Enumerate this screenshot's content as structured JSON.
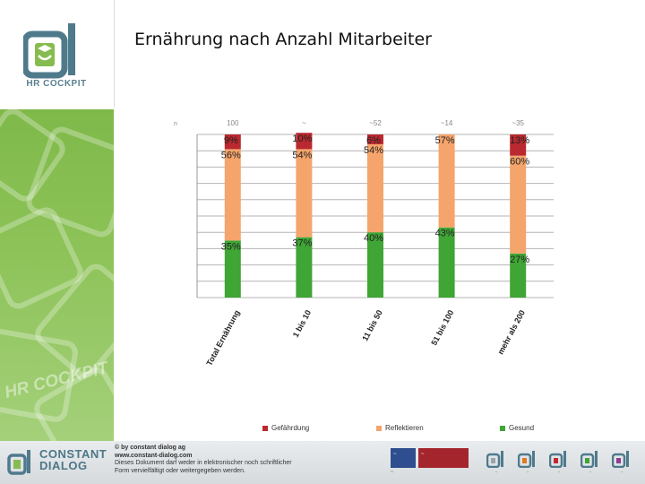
{
  "title": "Ernährung nach Anzahl Mitarbeiter",
  "logo": {
    "text": "HR COCKPIT",
    "watermark": "HR COCKPIT"
  },
  "chart_data": {
    "type": "bar",
    "stacked": true,
    "title": "Ernährung nach Anzahl Mitarbeiter",
    "categories": [
      "Total Ernährung",
      "1 bis 10",
      "11 bis 50",
      "51 bis 100",
      "mehr als 200"
    ],
    "n_labels": [
      "100",
      "~",
      "~52",
      "~14",
      "~35"
    ],
    "series": [
      {
        "name": "Gesund",
        "color": "#3fa535",
        "values": [
          35,
          37,
          40,
          43,
          27
        ],
        "labels": [
          "35%",
          "37%",
          "40%",
          "43%",
          "27%"
        ]
      },
      {
        "name": "Reflektieren",
        "color": "#f5a46b",
        "values": [
          56,
          54,
          54,
          57,
          60
        ],
        "labels": [
          "56%",
          "54%",
          "54%",
          "57%",
          "60%"
        ]
      },
      {
        "name": "Gefährdung",
        "color": "#b9292f",
        "values": [
          9,
          10,
          6,
          0,
          13
        ],
        "labels": [
          "9%",
          "10%",
          "6%",
          "",
          "13%"
        ]
      }
    ],
    "ylim": [
      0,
      100
    ],
    "grid": true,
    "legend": "bottom"
  },
  "legend": [
    {
      "name": "Gefährdung",
      "color": "#b9292f"
    },
    {
      "name": "Reflektieren",
      "color": "#f5a46b"
    },
    {
      "name": "Gesund",
      "color": "#3fa535"
    }
  ],
  "footer": {
    "brand_line1": "CONSTANT",
    "brand_line2": "DIALOG",
    "copy_lines": [
      "© by constant dialog ag",
      "www.constant-dialog.com",
      "Dieses Dokument darf weder in elektronischer noch schriftlicher",
      "Form vervielfältigt oder weitergegeben werden."
    ],
    "cert1": "~",
    "cert2": "~",
    "cert_caption": "~",
    "mini_logos": [
      "~",
      "~",
      "~",
      "~",
      "~"
    ]
  }
}
